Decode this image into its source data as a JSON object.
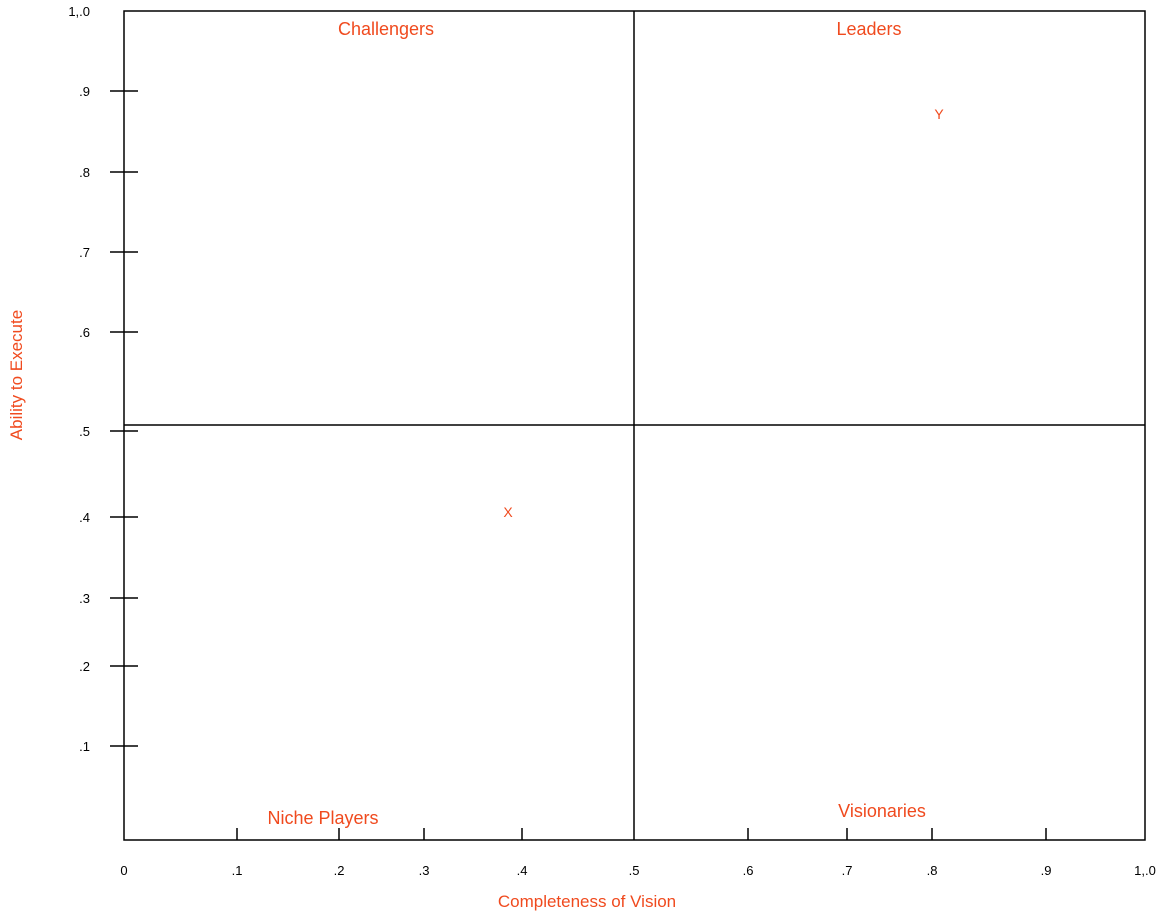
{
  "chart_data": {
    "type": "scatter",
    "title": "",
    "xlabel": "Completeness of Vision",
    "ylabel": "Ability to Execute",
    "xlim": [
      0,
      1.0
    ],
    "ylim": [
      0,
      1.0
    ],
    "grid": false,
    "x_ticks": [
      "0",
      ".1",
      ".2",
      ".3",
      ".4",
      ".5",
      ".6",
      ".7",
      ".8",
      ".9",
      "1,.0"
    ],
    "y_ticks": [
      ".1",
      ".2",
      ".3",
      ".4",
      ".5",
      ".6",
      ".7",
      ".8",
      ".9",
      "1,.0"
    ],
    "quadrant_dividers": {
      "x": 0.5,
      "y": 0.5
    },
    "quadrants": [
      {
        "name": "Challengers",
        "position": "top-left"
      },
      {
        "name": "Leaders",
        "position": "top-right"
      },
      {
        "name": "Niche Players",
        "position": "bottom-left"
      },
      {
        "name": "Visionaries",
        "position": "bottom-right"
      }
    ],
    "points": [
      {
        "label": "X",
        "x": 0.38,
        "y": 0.4
      },
      {
        "label": "Y",
        "x": 0.8,
        "y": 0.87
      }
    ]
  },
  "colors": {
    "accent": "#f04a1e",
    "axis": "#000000"
  }
}
